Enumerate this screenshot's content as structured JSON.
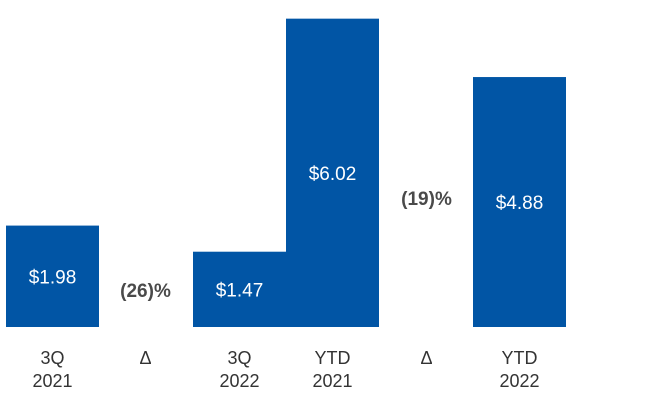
{
  "chart_data": {
    "type": "bar",
    "title": "",
    "xlabel": "",
    "ylabel": "",
    "colors": {
      "bar": "#0155A5",
      "delta_text": "#4A4A4A",
      "axis_text": "#333333",
      "bar_text": "#FFFFFF"
    },
    "categories": [
      [
        "3Q",
        "2021"
      ],
      [
        "Δ"
      ],
      [
        "3Q",
        "2022"
      ],
      [
        "YTD",
        "2021"
      ],
      [
        "Δ"
      ],
      [
        "YTD",
        "2022"
      ]
    ],
    "values": [
      1.98,
      null,
      1.47,
      6.02,
      null,
      4.88
    ],
    "value_labels": [
      "$1.98",
      "",
      "$1.47",
      "$6.02",
      "",
      "$4.88"
    ],
    "deltas": [
      {
        "label": "(26)%",
        "slot": 1
      },
      {
        "label": "(19)%",
        "slot": 4
      }
    ],
    "ylim": [
      0,
      6.15
    ],
    "grid": false,
    "legend": "none"
  }
}
